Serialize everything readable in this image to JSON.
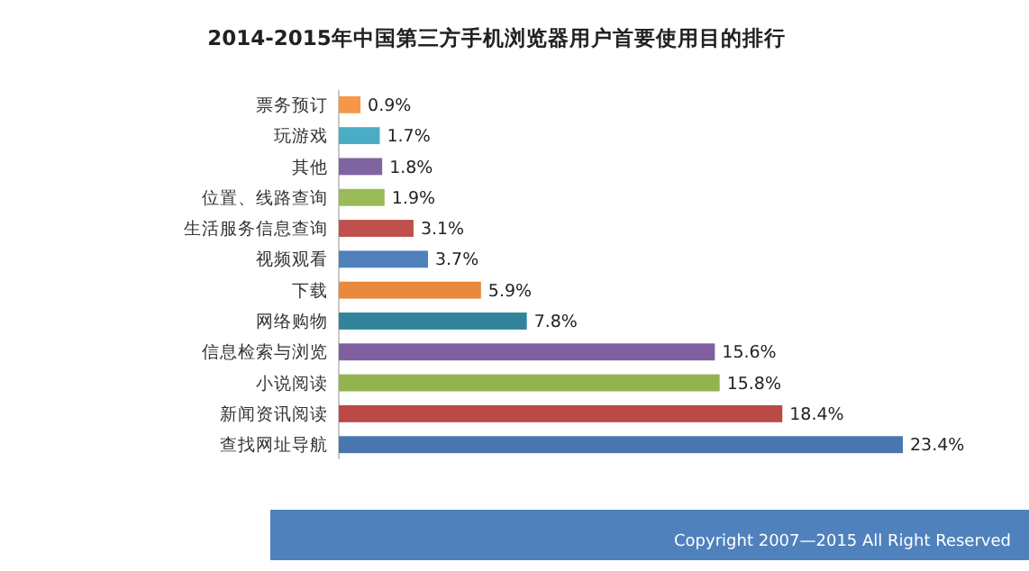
{
  "chart_data": {
    "type": "bar",
    "orientation": "horizontal",
    "title": "2014-2015年中国第三方手机浏览器用户首要使用目的排行",
    "categories": [
      "票务预订",
      "玩游戏",
      "其他",
      "位置、线路查询",
      "生活服务信息查询",
      "视频观看",
      "下载",
      "网络购物",
      "信息检索与浏览",
      "小说阅读",
      "新闻资讯阅读",
      "查找网址导航"
    ],
    "values": [
      0.9,
      1.7,
      1.8,
      1.9,
      3.1,
      3.7,
      5.9,
      7.8,
      15.6,
      15.8,
      18.4,
      23.4
    ],
    "colors": [
      "#f79646",
      "#4bacc6",
      "#8064a2",
      "#9bbb59",
      "#c0504d",
      "#4f81bd",
      "#e8893b",
      "#31849b",
      "#7f5fa0",
      "#93b34f",
      "#b94a46",
      "#4a76b0"
    ],
    "value_labels": [
      "0.9%",
      "1.7%",
      "1.8%",
      "1.9%",
      "3.1%",
      "3.7%",
      "5.9%",
      "7.8%",
      "15.6%",
      "15.8%",
      "18.4%",
      "23.4%"
    ],
    "annotations": [
      "Copyright 2007—2015 All Right Reserved"
    ]
  }
}
